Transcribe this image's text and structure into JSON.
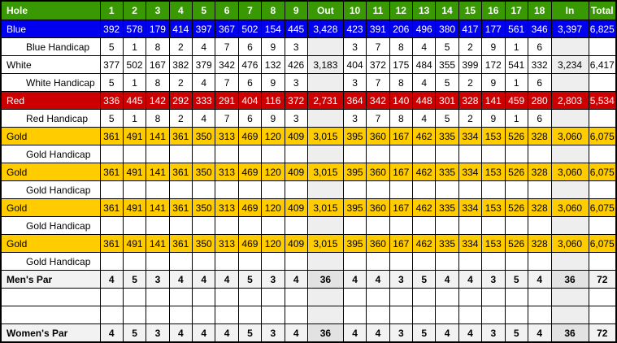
{
  "scorecard": {
    "columns": [
      "Hole",
      "1",
      "2",
      "3",
      "4",
      "5",
      "6",
      "7",
      "8",
      "9",
      "Out",
      "10",
      "11",
      "12",
      "13",
      "14",
      "15",
      "16",
      "17",
      "18",
      "In",
      "Total"
    ],
    "rows": [
      {
        "label": "Blue",
        "type": "tee-blue",
        "values": [
          "392",
          "578",
          "179",
          "414",
          "397",
          "367",
          "502",
          "154",
          "445",
          "3,428",
          "423",
          "391",
          "206",
          "496",
          "380",
          "417",
          "177",
          "561",
          "346",
          "3,397",
          "6,825"
        ]
      },
      {
        "label": "Blue Handicap",
        "type": "handicap",
        "values": [
          "5",
          "1",
          "8",
          "2",
          "4",
          "7",
          "6",
          "9",
          "3",
          "",
          "3",
          "7",
          "8",
          "4",
          "5",
          "2",
          "9",
          "1",
          "6",
          "",
          ""
        ]
      },
      {
        "label": "White",
        "type": "tee-white",
        "values": [
          "377",
          "502",
          "167",
          "382",
          "379",
          "342",
          "476",
          "132",
          "426",
          "3,183",
          "404",
          "372",
          "175",
          "484",
          "355",
          "399",
          "172",
          "541",
          "332",
          "3,234",
          "6,417"
        ]
      },
      {
        "label": "White Handicap",
        "type": "handicap",
        "values": [
          "5",
          "1",
          "8",
          "2",
          "4",
          "7",
          "6",
          "9",
          "3",
          "",
          "3",
          "7",
          "8",
          "4",
          "5",
          "2",
          "9",
          "1",
          "6",
          "",
          ""
        ]
      },
      {
        "label": "Red",
        "type": "tee-red",
        "values": [
          "336",
          "445",
          "142",
          "292",
          "333",
          "291",
          "404",
          "116",
          "372",
          "2,731",
          "364",
          "342",
          "140",
          "448",
          "301",
          "328",
          "141",
          "459",
          "280",
          "2,803",
          "5,534"
        ]
      },
      {
        "label": "Red Handicap",
        "type": "handicap",
        "values": [
          "5",
          "1",
          "8",
          "2",
          "4",
          "7",
          "6",
          "9",
          "3",
          "",
          "3",
          "7",
          "8",
          "4",
          "5",
          "2",
          "9",
          "1",
          "6",
          "",
          ""
        ]
      },
      {
        "label": "Gold",
        "type": "tee-gold",
        "values": [
          "361",
          "491",
          "141",
          "361",
          "350",
          "313",
          "469",
          "120",
          "409",
          "3,015",
          "395",
          "360",
          "167",
          "462",
          "335",
          "334",
          "153",
          "526",
          "328",
          "3,060",
          "6,075"
        ]
      },
      {
        "label": "Gold Handicap",
        "type": "handicap",
        "values": [
          "",
          "",
          "",
          "",
          "",
          "",
          "",
          "",
          "",
          "",
          "",
          "",
          "",
          "",
          "",
          "",
          "",
          "",
          "",
          "",
          ""
        ]
      },
      {
        "label": "Gold",
        "type": "tee-gold",
        "values": [
          "361",
          "491",
          "141",
          "361",
          "350",
          "313",
          "469",
          "120",
          "409",
          "3,015",
          "395",
          "360",
          "167",
          "462",
          "335",
          "334",
          "153",
          "526",
          "328",
          "3,060",
          "6,075"
        ]
      },
      {
        "label": "Gold Handicap",
        "type": "handicap",
        "values": [
          "",
          "",
          "",
          "",
          "",
          "",
          "",
          "",
          "",
          "",
          "",
          "",
          "",
          "",
          "",
          "",
          "",
          "",
          "",
          "",
          ""
        ]
      },
      {
        "label": "Gold",
        "type": "tee-gold",
        "values": [
          "361",
          "491",
          "141",
          "361",
          "350",
          "313",
          "469",
          "120",
          "409",
          "3,015",
          "395",
          "360",
          "167",
          "462",
          "335",
          "334",
          "153",
          "526",
          "328",
          "3,060",
          "6,075"
        ]
      },
      {
        "label": "Gold Handicap",
        "type": "handicap",
        "values": [
          "",
          "",
          "",
          "",
          "",
          "",
          "",
          "",
          "",
          "",
          "",
          "",
          "",
          "",
          "",
          "",
          "",
          "",
          "",
          "",
          ""
        ]
      },
      {
        "label": "Gold",
        "type": "tee-gold",
        "values": [
          "361",
          "491",
          "141",
          "361",
          "350",
          "313",
          "469",
          "120",
          "409",
          "3,015",
          "395",
          "360",
          "167",
          "462",
          "335",
          "334",
          "153",
          "526",
          "328",
          "3,060",
          "6,075"
        ]
      },
      {
        "label": "Gold Handicap",
        "type": "handicap",
        "values": [
          "",
          "",
          "",
          "",
          "",
          "",
          "",
          "",
          "",
          "",
          "",
          "",
          "",
          "",
          "",
          "",
          "",
          "",
          "",
          "",
          ""
        ]
      },
      {
        "label": "Men's Par",
        "type": "par",
        "values": [
          "4",
          "5",
          "3",
          "4",
          "4",
          "4",
          "5",
          "3",
          "4",
          "36",
          "4",
          "4",
          "3",
          "5",
          "4",
          "4",
          "3",
          "5",
          "4",
          "36",
          "72"
        ]
      },
      {
        "label": "",
        "type": "empty",
        "values": [
          "",
          "",
          "",
          "",
          "",
          "",
          "",
          "",
          "",
          "",
          "",
          "",
          "",
          "",
          "",
          "",
          "",
          "",
          "",
          "",
          ""
        ]
      },
      {
        "label": "",
        "type": "empty",
        "values": [
          "",
          "",
          "",
          "",
          "",
          "",
          "",
          "",
          "",
          "",
          "",
          "",
          "",
          "",
          "",
          "",
          "",
          "",
          "",
          "",
          ""
        ]
      },
      {
        "label": "Women's Par",
        "type": "par",
        "values": [
          "4",
          "5",
          "3",
          "4",
          "4",
          "4",
          "5",
          "3",
          "4",
          "36",
          "4",
          "4",
          "3",
          "5",
          "4",
          "4",
          "3",
          "5",
          "4",
          "36",
          "72"
        ]
      }
    ]
  },
  "colors": {
    "header_green": "#389903",
    "tee_blue": "#0000EE",
    "tee_red": "#CC0000",
    "tee_gold": "#FFCC00",
    "neutral_gray": "#EEEEEE",
    "par_bg": "#F2F2F2",
    "par_accent": "#E2E2E2"
  }
}
